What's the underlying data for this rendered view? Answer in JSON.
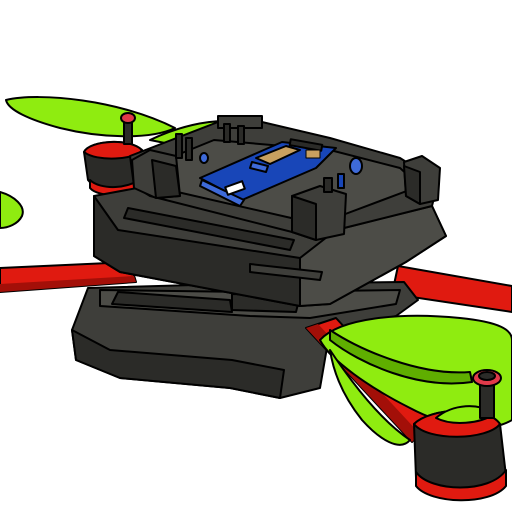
{
  "scene": {
    "subject": "quadcopter-drone-render",
    "colors": {
      "body": "#3e3e3a",
      "body_dark": "#2b2b28",
      "body_light": "#4c4c47",
      "arm": "#e01a10",
      "arm_dark": "#a30f08",
      "propeller": "#8fec10",
      "propeller_dark": "#5fae00",
      "board": "#1846b8",
      "board_light": "#3e6ad8",
      "chip": "#c8a060",
      "motor_cap": "#e03a4a",
      "outline": "#000000"
    }
  }
}
